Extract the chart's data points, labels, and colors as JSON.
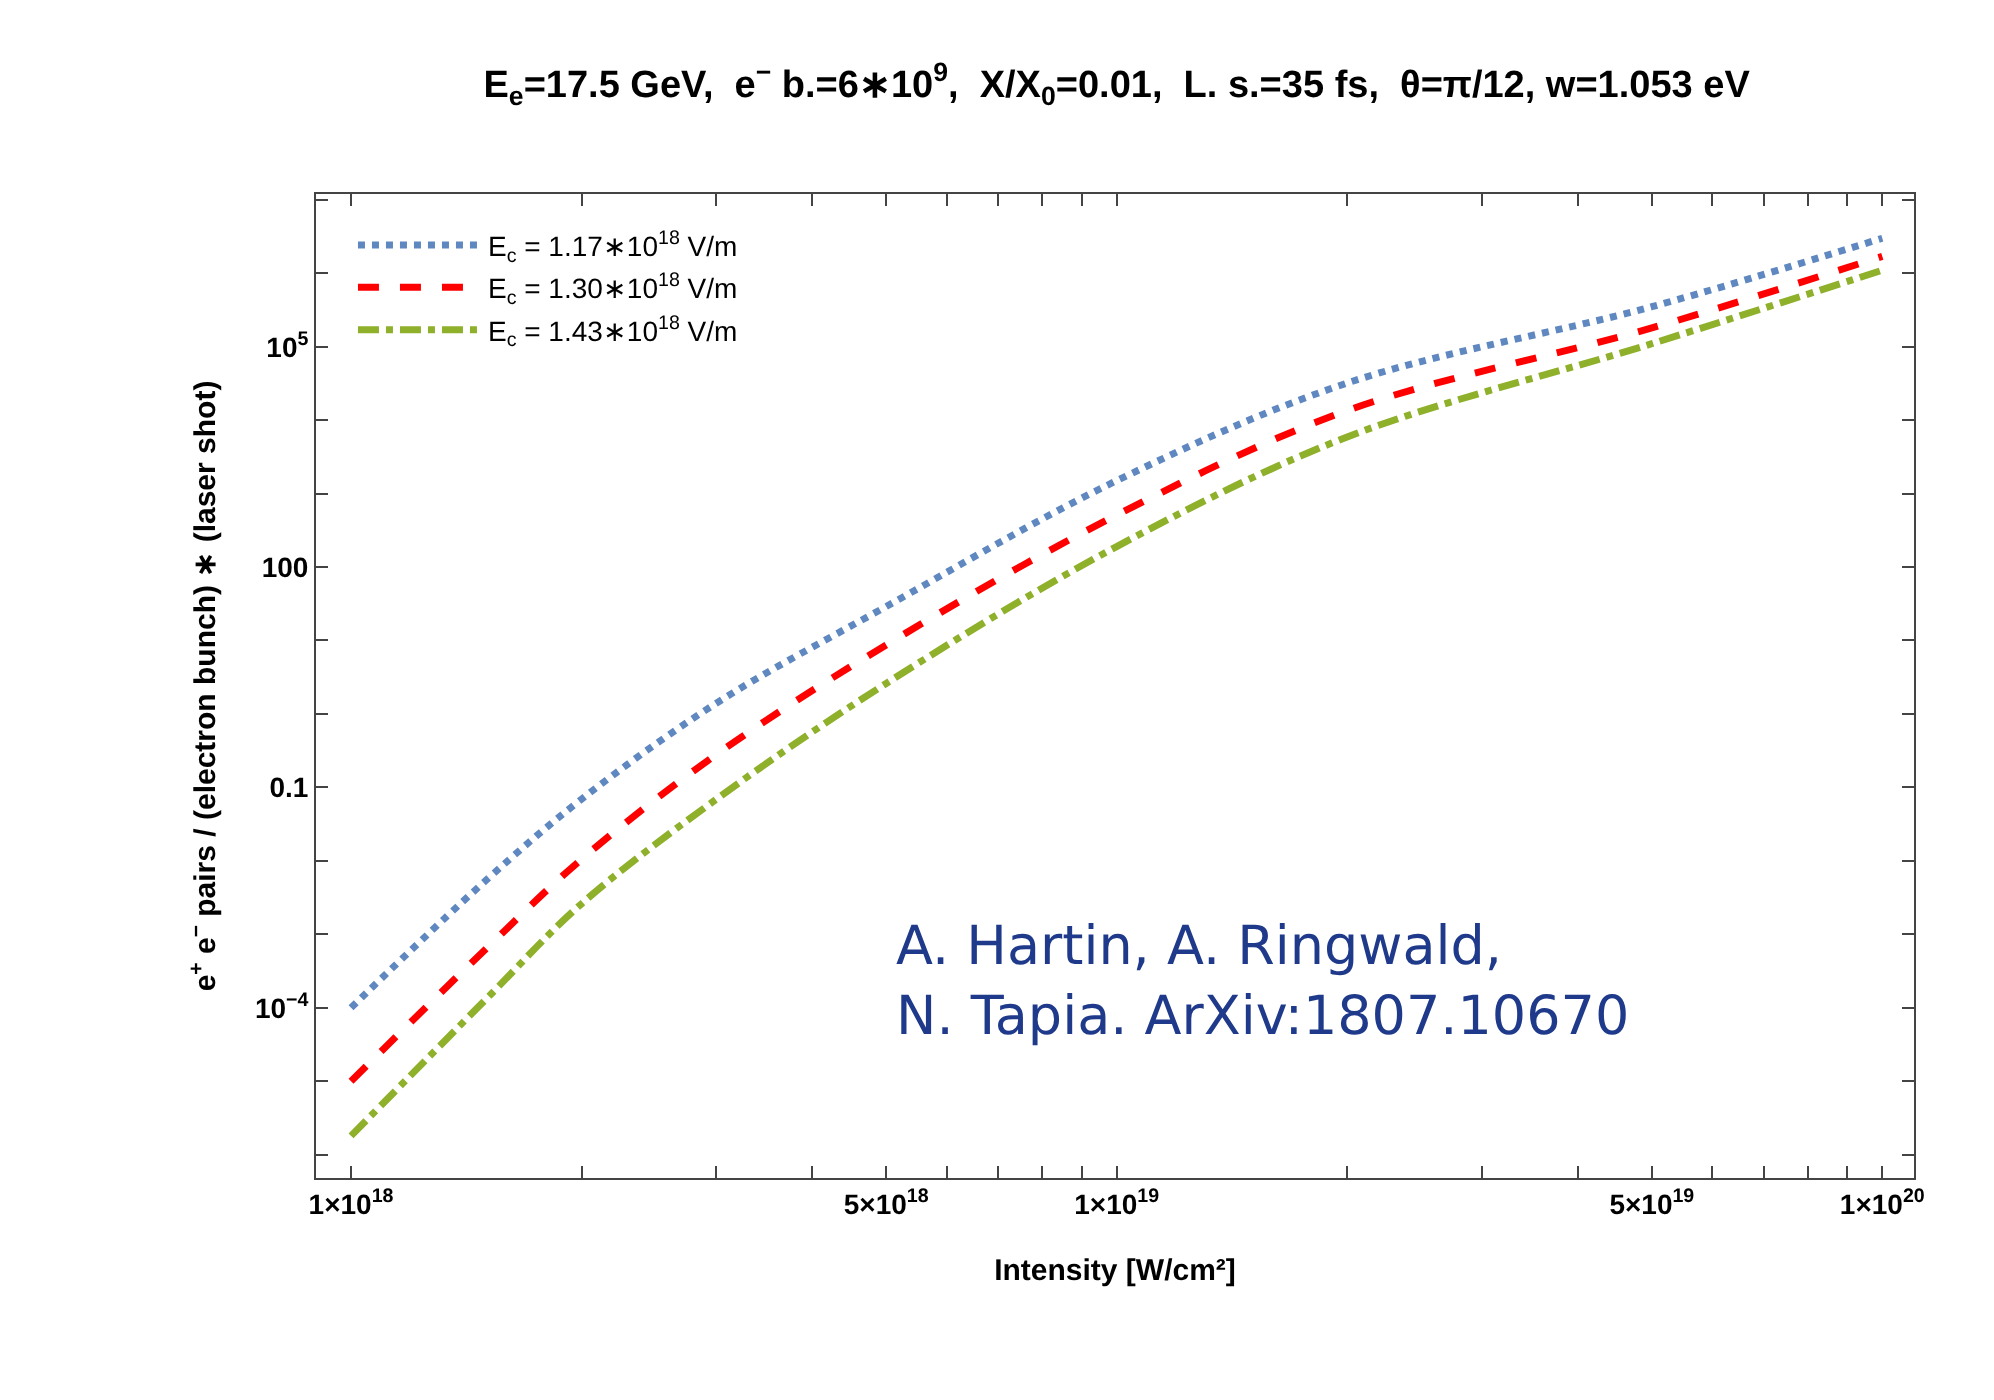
{
  "chart_data": {
    "type": "line",
    "title": "E$_{e}$=17.5 GeV,  e$^{−}$ b.=6∗10$^{9}$,  X/X$_{0}$=0.01,  L. s.=35 fs,  θ=π/12, w=1.053 eV",
    "xlabel": "Intensity [W/cm²]",
    "ylabel": "e$^{+}$ e$^{−}$ pairs / (electron bunch) ∗ (laser shot)",
    "x": [
      1e+18,
      1.5e+18,
      2e+18,
      3e+18,
      5e+18,
      1e+19,
      2e+19,
      5e+19,
      1e+20
    ],
    "series": [
      {
        "name": "E$_{c}$ = 1.17∗10$^{18}$ V/m",
        "color": "#5f87c0",
        "line_style": "dotted",
        "values": [
          0.0001,
          0.0054,
          0.069,
          1.4,
          29,
          1500,
          32000,
          350000,
          3000000
        ]
      },
      {
        "name": "E$_{c}$ = 1.30∗10$^{18}$ V/m",
        "color": "#ff0000",
        "line_style": "dashed",
        "values": [
          1e-05,
          0.00063,
          0.0105,
          0.28,
          8.7,
          510,
          13500,
          180000,
          1700000
        ]
      },
      {
        "name": "E$_{c}$ = 1.43∗10$^{18}$ V/m",
        "color": "#8fb02a",
        "line_style": "dashdot",
        "values": [
          1.8e-06,
          0.00013,
          0.0026,
          0.069,
          2.6,
          190,
          5900,
          110000,
          1100000
        ]
      }
    ],
    "log": "xy",
    "xlim": [
      9e+17,
      1.1e+20
    ],
    "ylim": [
      4.8e-07,
      12000000.0
    ],
    "xticks": [
      {
        "value": 1e+18,
        "label": "1×10$^{18}$"
      },
      {
        "value": 2e+18,
        "label": null
      },
      {
        "value": 3e+18,
        "label": null
      },
      {
        "value": 4e+18,
        "label": null
      },
      {
        "value": 5e+18,
        "label": "5×10$^{18}$"
      },
      {
        "value": 6e+18,
        "label": null
      },
      {
        "value": 7e+18,
        "label": null
      },
      {
        "value": 8e+18,
        "label": null
      },
      {
        "value": 9e+18,
        "label": null
      },
      {
        "value": 1e+19,
        "label": "1×10$^{19}$"
      },
      {
        "value": 2e+19,
        "label": null
      },
      {
        "value": 3e+19,
        "label": null
      },
      {
        "value": 4e+19,
        "label": null
      },
      {
        "value": 5e+19,
        "label": "5×10$^{19}$"
      },
      {
        "value": 6e+19,
        "label": null
      },
      {
        "value": 7e+19,
        "label": null
      },
      {
        "value": 8e+19,
        "label": null
      },
      {
        "value": 9e+19,
        "label": null
      },
      {
        "value": 1e+20,
        "label": "1×10$^{20}$"
      }
    ],
    "yticks": [
      {
        "value": 1e-06,
        "label": null
      },
      {
        "value": 1e-05,
        "label": null
      },
      {
        "value": 0.0001,
        "label": "10$^{−4}$"
      },
      {
        "value": 0.001,
        "label": null
      },
      {
        "value": 0.01,
        "label": null
      },
      0.1,
      {
        "value": 1,
        "label": null
      },
      {
        "value": 10,
        "label": null
      },
      100,
      {
        "value": 1000,
        "label": null
      },
      {
        "value": 10000,
        "label": null
      },
      {
        "value": 100000,
        "label": "10$^{5}$"
      },
      {
        "value": 1000000,
        "label": null
      },
      {
        "value": 10000000,
        "label": null
      }
    ],
    "grid": false,
    "legend": "top left",
    "marker": "none",
    "annotations": [
      "A. Hartin, A. Ringwald,\nN. Tapia. ArXiv:1807.10670"
    ]
  }
}
